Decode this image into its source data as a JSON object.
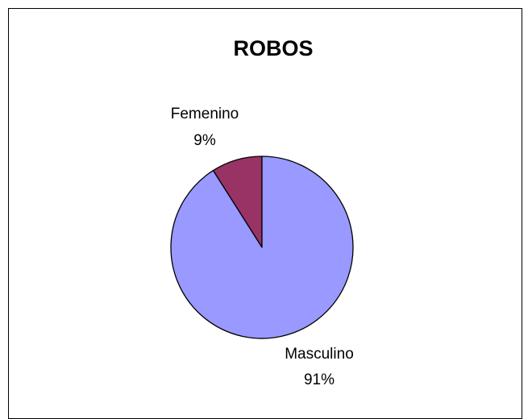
{
  "chart_data": {
    "type": "pie",
    "title": "ROBOS",
    "slices": [
      {
        "label": "Femenino",
        "percent_label": "9%",
        "value": 9,
        "color": "#993366"
      },
      {
        "label": "Masculino",
        "percent_label": "91%",
        "value": 91,
        "color": "#9999ff"
      }
    ],
    "start_angle": "12 o'clock",
    "direction": "counterclockwise",
    "edge_color": "#000000",
    "legend": "none",
    "labels": "outside"
  }
}
